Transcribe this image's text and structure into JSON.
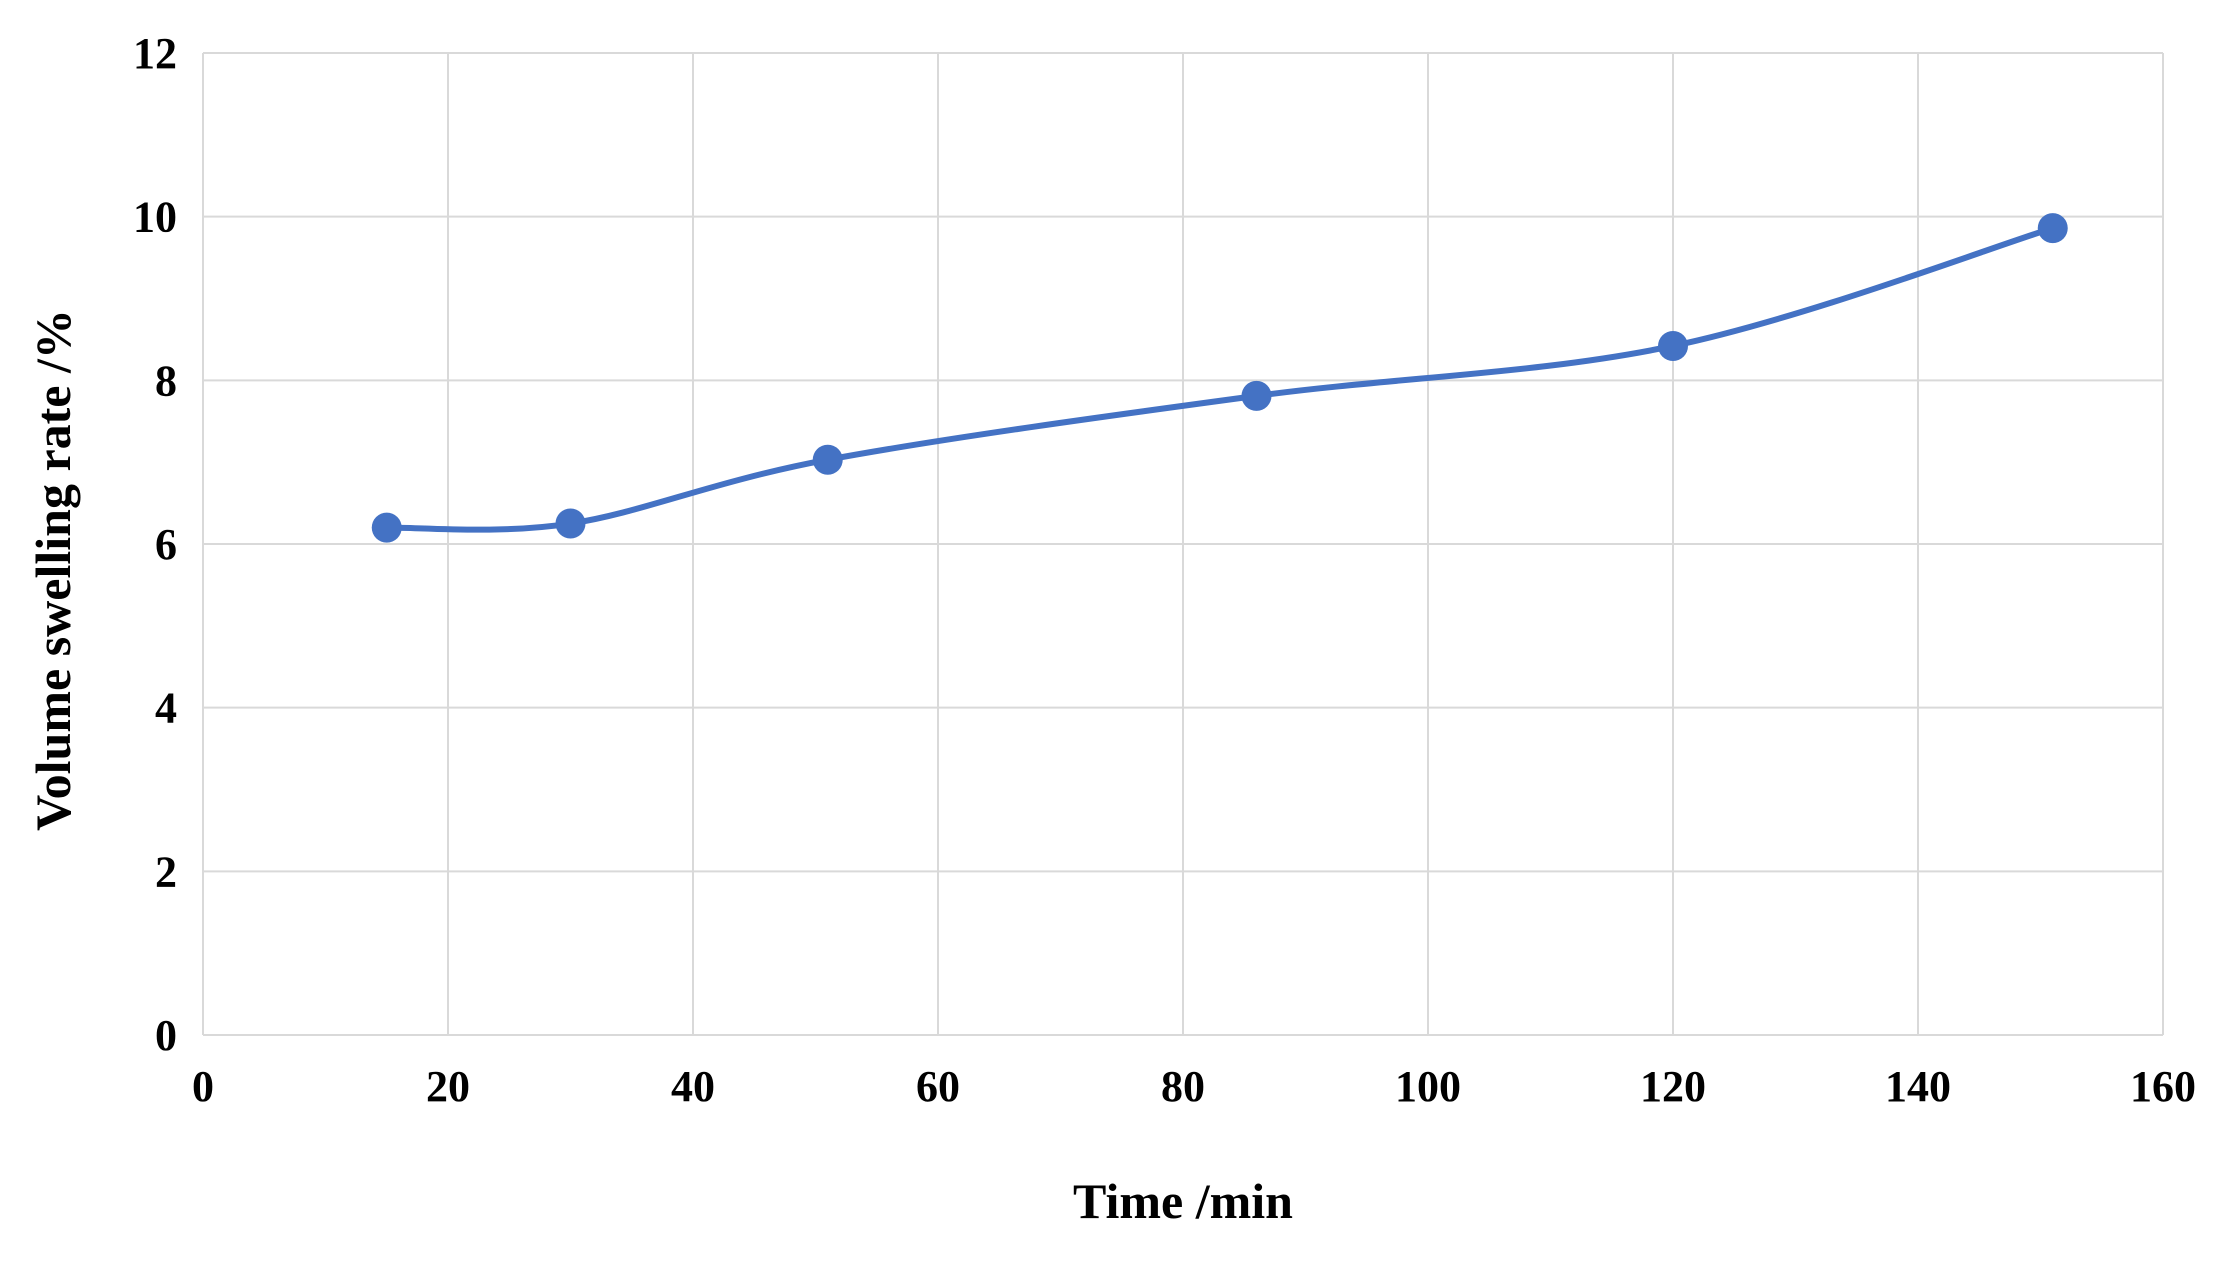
{
  "chart_data": {
    "type": "line",
    "x_label": "Time /min",
    "y_label": "Volume swelling rate /%",
    "x": [
      15,
      30,
      51,
      86,
      120,
      151
    ],
    "series": [
      {
        "name": "Volume swelling rate",
        "color": "#4472c4",
        "values": [
          6.2,
          6.25,
          7.03,
          7.81,
          8.42,
          9.86
        ]
      }
    ],
    "xlim": [
      0,
      160
    ],
    "xticks": [
      0,
      20,
      40,
      60,
      80,
      100,
      120,
      140,
      160
    ],
    "ylim": [
      0,
      12
    ],
    "yticks": [
      0,
      2,
      4,
      6,
      8,
      10,
      12
    ],
    "grid": true,
    "smooth": true,
    "markers": true
  }
}
